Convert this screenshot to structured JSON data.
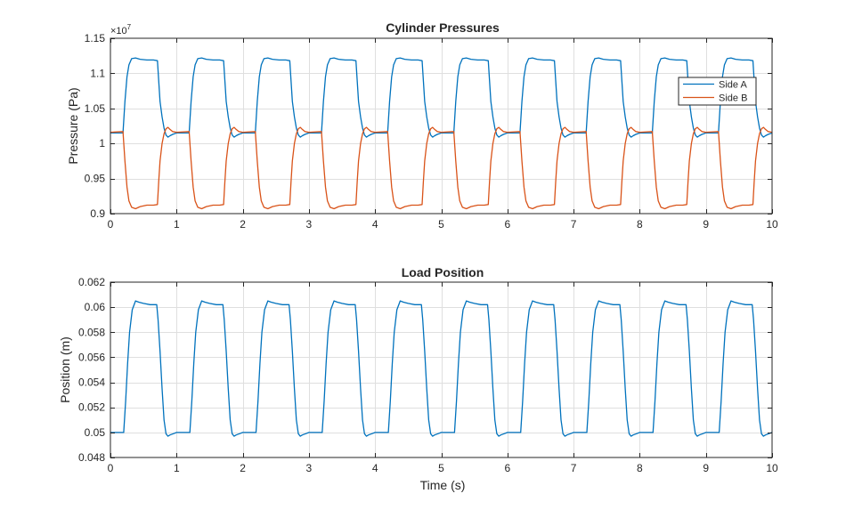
{
  "colors": {
    "side_a": "#0072BD",
    "side_b": "#D95319",
    "axes": "#262626",
    "grid": "#dfdfdf"
  },
  "chart_data": [
    {
      "type": "line",
      "title": "Cylinder Pressures",
      "xlabel": "",
      "ylabel": "Pressure (Pa)",
      "xlim": [
        0,
        10
      ],
      "ylim": [
        0.9,
        1.15
      ],
      "y_exponent_label": "×10",
      "y_exponent_power": "7",
      "x_ticks": [
        0,
        1,
        2,
        3,
        4,
        5,
        6,
        7,
        8,
        9,
        10
      ],
      "x_tick_labels": [
        "0",
        "1",
        "2",
        "3",
        "4",
        "5",
        "6",
        "7",
        "8",
        "9",
        "10"
      ],
      "y_ticks": [
        0.9,
        0.95,
        1.0,
        1.05,
        1.1,
        1.15
      ],
      "y_tick_labels": [
        "0.9",
        "0.95",
        "1",
        "1.05",
        "1.1",
        "1.15"
      ],
      "grid": true,
      "legend_position": "right",
      "period": 1.0,
      "series": [
        {
          "name": "Side A",
          "color": "#0072BD",
          "x": [
            0,
            0.19,
            0.22,
            0.25,
            0.28,
            0.32,
            0.38,
            0.45,
            0.55,
            0.65,
            0.71,
            0.73,
            0.75,
            0.78,
            0.81,
            0.84,
            0.87,
            0.9,
            0.94,
            1.0
          ],
          "y": [
            1.015,
            1.015,
            1.06,
            1.095,
            1.112,
            1.121,
            1.122,
            1.12,
            1.119,
            1.119,
            1.118,
            1.09,
            1.06,
            1.038,
            1.022,
            1.012,
            1.009,
            1.011,
            1.013,
            1.015
          ]
        },
        {
          "name": "Side B",
          "color": "#D95319",
          "x": [
            0,
            0.19,
            0.22,
            0.25,
            0.28,
            0.32,
            0.38,
            0.45,
            0.55,
            0.65,
            0.71,
            0.73,
            0.75,
            0.78,
            0.81,
            0.84,
            0.87,
            0.9,
            0.94,
            1.0
          ],
          "y": [
            1.016,
            1.017,
            0.975,
            0.938,
            0.918,
            0.909,
            0.907,
            0.91,
            0.912,
            0.912,
            0.913,
            0.945,
            0.975,
            1.0,
            1.014,
            1.021,
            1.023,
            1.02,
            1.017,
            1.016
          ]
        }
      ]
    },
    {
      "type": "line",
      "title": "Load Position",
      "xlabel": "Time (s)",
      "ylabel": "Position (m)",
      "xlim": [
        0,
        10
      ],
      "ylim": [
        0.048,
        0.062
      ],
      "x_ticks": [
        0,
        1,
        2,
        3,
        4,
        5,
        6,
        7,
        8,
        9,
        10
      ],
      "x_tick_labels": [
        "0",
        "1",
        "2",
        "3",
        "4",
        "5",
        "6",
        "7",
        "8",
        "9",
        "10"
      ],
      "y_ticks": [
        0.048,
        0.05,
        0.052,
        0.054,
        0.056,
        0.058,
        0.06,
        0.062
      ],
      "y_tick_labels": [
        "0.048",
        "0.05",
        "0.052",
        "0.054",
        "0.056",
        "0.058",
        "0.06",
        "0.062"
      ],
      "grid": true,
      "period": 1.0,
      "series": [
        {
          "color": "#0072BD",
          "x": [
            0,
            0.2,
            0.23,
            0.26,
            0.29,
            0.33,
            0.38,
            0.43,
            0.5,
            0.6,
            0.7,
            0.72,
            0.75,
            0.78,
            0.81,
            0.84,
            0.87,
            0.9,
            0.95,
            1.0
          ],
          "y": [
            0.05,
            0.05,
            0.0525,
            0.0555,
            0.058,
            0.0598,
            0.0605,
            0.0604,
            0.0603,
            0.0602,
            0.0602,
            0.059,
            0.0565,
            0.0535,
            0.051,
            0.0499,
            0.0497,
            0.0498,
            0.0499,
            0.05
          ]
        }
      ]
    }
  ]
}
